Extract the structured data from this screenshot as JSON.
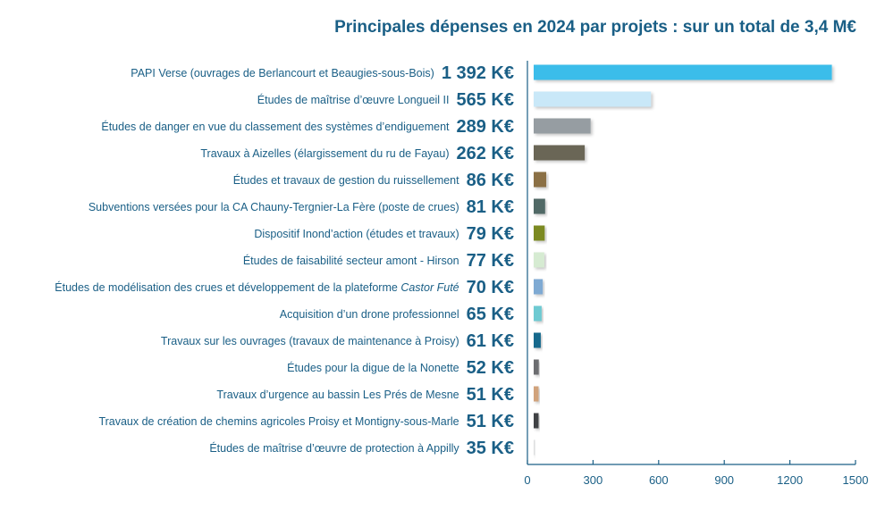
{
  "chart_data": {
    "type": "bar",
    "orientation": "horizontal",
    "title": "Principales dépenses en 2024 par projets : sur un total de 3,4 M€",
    "xlabel": "",
    "ylabel": "",
    "xlim": [
      0,
      1500
    ],
    "x_ticks": [
      "0",
      "300",
      "600",
      "900",
      "1200",
      "1500"
    ],
    "grid": false,
    "legend": "none",
    "categories": [
      "PAPI Verse (ouvrages de Berlancourt et Beaugies-sous-Bois)",
      "Études de maîtrise d’œuvre Longueil II",
      "Études de danger en vue du classement des systèmes d’endiguement",
      "Travaux à Aizelles (élargissement du ru de Fayau)",
      "Études et travaux de gestion du ruissellement",
      "Subventions versées pour la CA Chauny-Tergnier-La Fère (poste de crues)",
      "Dispositif Inond’action (études et travaux)",
      "Études de faisabilité secteur amont - Hirson",
      "Études de modélisation des crues et développement de la plateforme ",
      "Acquisition d’un drone professionnel",
      "Travaux sur les ouvrages (travaux de maintenance à Proisy)",
      "Études pour la digue de la Nonette",
      "Travaux d’urgence au bassin Les Prés de Mesne",
      "Travaux de création de chemins agricoles Proisy et Montigny-sous-Marle",
      "Études de maîtrise d’œuvre de protection à Appilly"
    ],
    "category_italic_suffix": [
      "",
      "",
      "",
      "",
      "",
      "",
      "",
      "",
      "Castor Futé",
      "",
      "",
      "",
      "",
      "",
      ""
    ],
    "values": [
      1392,
      565,
      289,
      262,
      86,
      81,
      79,
      77,
      70,
      65,
      61,
      52,
      51,
      51,
      35
    ],
    "value_labels": [
      "1 392 K€",
      "565 K€",
      "289 K€",
      "262 K€",
      "86 K€",
      "81 K€",
      "79 K€",
      "77 K€",
      "70 K€",
      "65 K€",
      "61 K€",
      "52 K€",
      "51 K€",
      "51 K€",
      "35 K€"
    ],
    "colors": [
      "#3bbdea",
      "#c9e8f8",
      "#969da2",
      "#6b6656",
      "#8b7044",
      "#516966",
      "#7c8a22",
      "#d6ebd2",
      "#7faad3",
      "#6ecad2",
      "#13698c",
      "#6c6d70",
      "#d1a37c",
      "#3f4244",
      "#dfe0e1"
    ]
  },
  "colors": {
    "title": "#1a5f86",
    "label": "#1a5f86",
    "axis": "#1a5f86"
  }
}
